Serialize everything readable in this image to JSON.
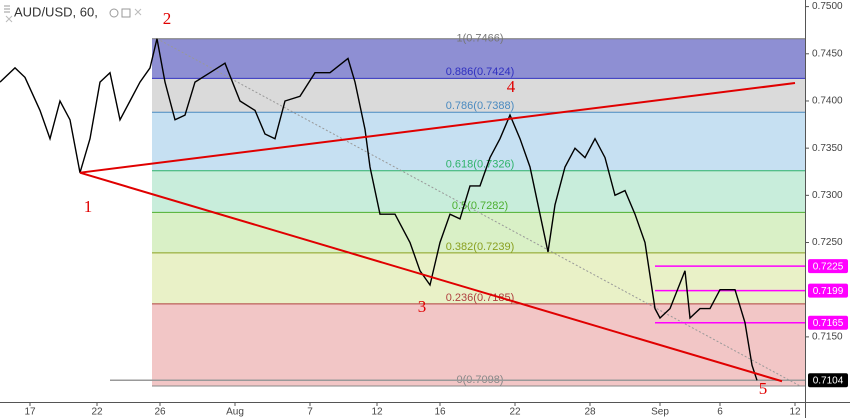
{
  "chart_data": {
    "type": "line",
    "title": "AUD/USD, 60,",
    "series": [
      {
        "name": "AUD/USD",
        "color": "#000000",
        "x": [
          0,
          15,
          25,
          40,
          50,
          60,
          70,
          80,
          90,
          100,
          110,
          120,
          130,
          140,
          150,
          157,
          165,
          175,
          185,
          195,
          210,
          225,
          240,
          255,
          265,
          275,
          285,
          300,
          315,
          330,
          348,
          355,
          365,
          370,
          380,
          395,
          410,
          420,
          430,
          440,
          450,
          460,
          470,
          480,
          490,
          500,
          510,
          520,
          530,
          540,
          548,
          555,
          565,
          575,
          585,
          595,
          605,
          615,
          625,
          635,
          645,
          655,
          660,
          670,
          685,
          690,
          700,
          710,
          720,
          735,
          745,
          752,
          757
        ],
        "values": [
          0.742,
          0.7435,
          0.7425,
          0.739,
          0.736,
          0.74,
          0.738,
          0.7324,
          0.736,
          0.742,
          0.743,
          0.738,
          0.74,
          0.742,
          0.7435,
          0.7466,
          0.742,
          0.738,
          0.7385,
          0.742,
          0.743,
          0.744,
          0.74,
          0.739,
          0.7365,
          0.736,
          0.74,
          0.7405,
          0.743,
          0.743,
          0.7445,
          0.742,
          0.737,
          0.733,
          0.728,
          0.728,
          0.725,
          0.722,
          0.7205,
          0.725,
          0.728,
          0.7275,
          0.731,
          0.731,
          0.734,
          0.736,
          0.7385,
          0.736,
          0.733,
          0.728,
          0.724,
          0.729,
          0.733,
          0.735,
          0.734,
          0.736,
          0.734,
          0.73,
          0.7305,
          0.728,
          0.725,
          0.718,
          0.717,
          0.718,
          0.722,
          0.717,
          0.718,
          0.718,
          0.72,
          0.72,
          0.7165,
          0.712,
          0.7104
        ]
      }
    ],
    "xlim": [
      0,
      805
    ],
    "ylim": [
      0.7081,
      0.7507
    ],
    "xticks": [
      {
        "value": 30,
        "label": "17"
      },
      {
        "value": 97,
        "label": "22"
      },
      {
        "value": 160,
        "label": "26"
      },
      {
        "value": 235,
        "label": "Aug"
      },
      {
        "value": 310,
        "label": "7"
      },
      {
        "value": 377,
        "label": "12"
      },
      {
        "value": 440,
        "label": "16"
      },
      {
        "value": 515,
        "label": "22"
      },
      {
        "value": 590,
        "label": "28"
      },
      {
        "value": 660,
        "label": "Sep"
      },
      {
        "value": 720,
        "label": "6"
      },
      {
        "value": 795,
        "label": "12"
      }
    ],
    "yticks": [
      {
        "value": 0.715,
        "label": "0.7150"
      },
      {
        "value": 0.725,
        "label": "0.7250"
      },
      {
        "value": 0.73,
        "label": "0.7300"
      },
      {
        "value": 0.735,
        "label": "0.7350"
      },
      {
        "value": 0.74,
        "label": "0.7400"
      },
      {
        "value": 0.745,
        "label": "0.7450"
      },
      {
        "value": 0.75,
        "label": "0.7500"
      }
    ],
    "fib_levels": [
      {
        "label": "1(0.7466)",
        "level": 1,
        "price": 0.7466,
        "color": "#8e8fd3",
        "line": "#777777"
      },
      {
        "label": "0.886(0.7424)",
        "level": 0.886,
        "price": 0.7424,
        "color": "#dadada",
        "line": "#3030c0"
      },
      {
        "label": "0.786(0.7388)",
        "level": 0.786,
        "price": 0.7388,
        "color": "#c6e0f2",
        "line": "#4a8ac0"
      },
      {
        "label": "0.618(0.7326)",
        "level": 0.618,
        "price": 0.7326,
        "color": "#c8eddb",
        "line": "#2fb36a"
      },
      {
        "label": "0.5(0.7282)",
        "level": 0.5,
        "price": 0.7282,
        "color": "#d9f0c6",
        "line": "#4caf30"
      },
      {
        "label": "0.382(0.7239)",
        "level": 0.382,
        "price": 0.7239,
        "color": "#e9f1c7",
        "line": "#8aa020"
      },
      {
        "label": "0.236(0.7185)",
        "level": 0.236,
        "price": 0.7185,
        "color": "#f2c6c6",
        "line": "#b04040"
      },
      {
        "label": "0(0.7098)",
        "level": 0,
        "price": 0.7098,
        "color": "#f2c6c6",
        "line": "#888888"
      }
    ],
    "price_tags": [
      {
        "value": 0.7225,
        "color": "#ff00ff"
      },
      {
        "value": 0.7199,
        "color": "#ff00ff"
      },
      {
        "value": 0.7165,
        "color": "#ff00ff"
      },
      {
        "value": 0.7104,
        "color": "#000000"
      }
    ],
    "trend_lines": [
      {
        "color": "#e00000",
        "x": [
          80,
          795
        ],
        "y": [
          0.7324,
          0.7419
        ]
      },
      {
        "color": "#e00000",
        "x": [
          80,
          782
        ],
        "y": [
          0.7324,
          0.7103
        ]
      }
    ],
    "wave_labels": [
      "1",
      "2",
      "3",
      "4",
      "5"
    ]
  }
}
